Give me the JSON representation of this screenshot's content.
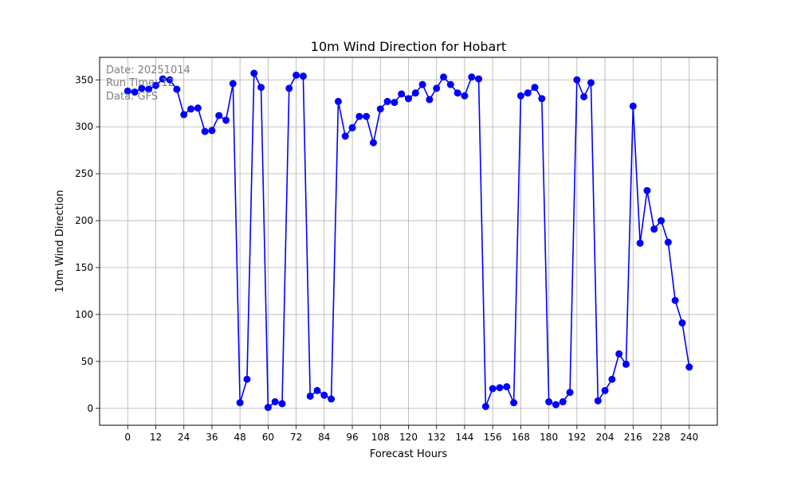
{
  "chart_data": {
    "type": "line",
    "title": "10m Wind Direction for Hobart",
    "xlabel": "Forecast Hours",
    "ylabel": "10m Wind Direction",
    "xlim": [
      -12,
      252
    ],
    "ylim": [
      -18,
      374
    ],
    "x_ticks": [
      0,
      12,
      24,
      36,
      48,
      60,
      72,
      84,
      96,
      108,
      120,
      132,
      144,
      156,
      168,
      180,
      192,
      204,
      216,
      228,
      240
    ],
    "y_ticks": [
      0,
      50,
      100,
      150,
      200,
      250,
      300,
      350
    ],
    "grid": true,
    "annotations": [
      "Date: 20251014",
      "Run Time: 12",
      "Data: GFS"
    ],
    "series": [
      {
        "color": "#0000ff",
        "marker": "circle",
        "x": [
          0,
          3,
          6,
          9,
          12,
          15,
          18,
          21,
          24,
          27,
          30,
          33,
          36,
          39,
          42,
          45,
          48,
          51,
          54,
          57,
          60,
          63,
          66,
          69,
          72,
          75,
          78,
          81,
          84,
          87,
          90,
          93,
          96,
          99,
          102,
          105,
          108,
          111,
          114,
          117,
          120,
          123,
          126,
          129,
          132,
          135,
          138,
          141,
          144,
          147,
          150,
          153,
          156,
          159,
          162,
          165,
          168,
          171,
          174,
          177,
          180,
          183,
          186,
          189,
          192,
          195,
          198,
          201,
          204,
          207,
          210,
          213,
          216,
          219,
          222,
          225,
          228,
          231,
          234,
          237,
          240
        ],
        "y": [
          338,
          337,
          341,
          340,
          344,
          351,
          350,
          340,
          313,
          319,
          320,
          295,
          296,
          312,
          307,
          346,
          6,
          31,
          357,
          342,
          1,
          7,
          5,
          341,
          355,
          354,
          13,
          19,
          14,
          10,
          327,
          290,
          299,
          311,
          311,
          283,
          319,
          327,
          326,
          335,
          330,
          336,
          345,
          329,
          341,
          353,
          345,
          336,
          333,
          353,
          351,
          2,
          21,
          22,
          23,
          6,
          333,
          336,
          342,
          330,
          7,
          4,
          7,
          17,
          350,
          332,
          347,
          8,
          19,
          31,
          58,
          47,
          322,
          176,
          232,
          191,
          200,
          177,
          115,
          91,
          44
        ]
      }
    ]
  }
}
